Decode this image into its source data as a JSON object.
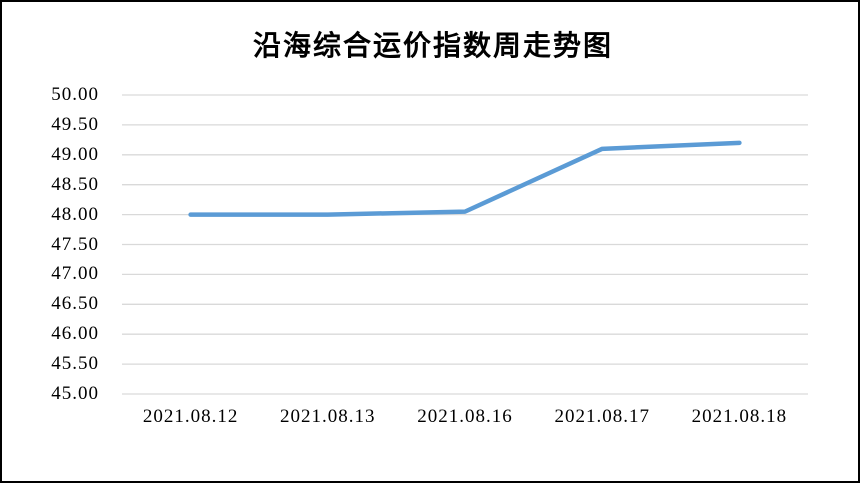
{
  "window": {
    "background_color": "#FFFFFF",
    "border_color": "#000000"
  },
  "chart_data": {
    "type": "line",
    "title": "沿海综合运价指数周走势图",
    "categories": [
      "2021.08.12",
      "2021.08.13",
      "2021.08.16",
      "2021.08.17",
      "2021.08.18"
    ],
    "series": [
      {
        "values": [
          48.0,
          48.0,
          48.05,
          49.1,
          49.2
        ],
        "color": "#5B9BD5",
        "line_width": 4.5
      }
    ],
    "xlabel": "",
    "ylabel": "",
    "ylim": [
      45.0,
      50.0
    ],
    "ytick_step": 0.5,
    "ytick_labels": [
      "50.00",
      "49.50",
      "49.00",
      "48.50",
      "48.00",
      "47.50",
      "47.00",
      "46.50",
      "46.00",
      "45.50",
      "45.00"
    ],
    "grid": "horizontal",
    "gridline_color": "#D9D9D9",
    "legend": "none",
    "markers": "none"
  }
}
